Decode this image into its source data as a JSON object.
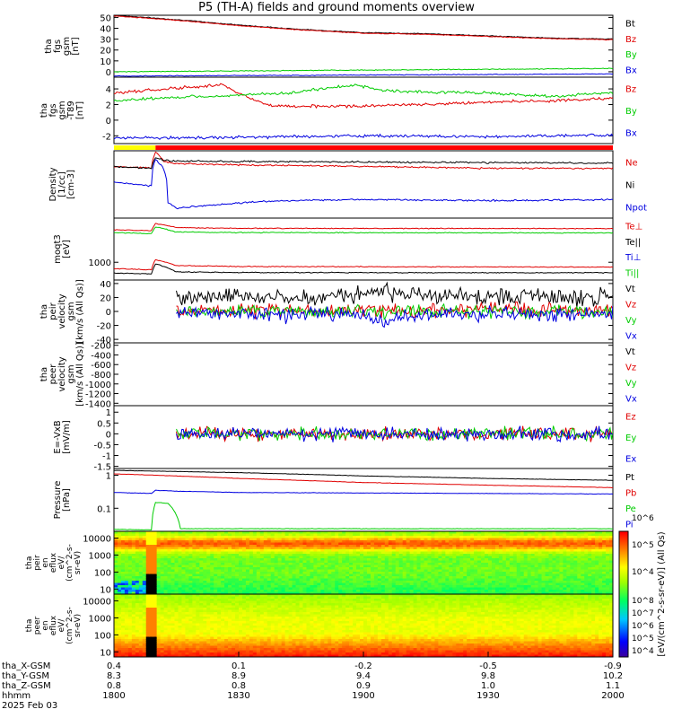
{
  "title": "P5 (TH-A) fields and ground moments overview",
  "colors": {
    "black": "#000000",
    "red": "#e00000",
    "green": "#00cc00",
    "blue": "#0000e0",
    "ok_bar": "#ff0000",
    "flag_bar": "#ffff00"
  },
  "chart_data": [
    {
      "type": "line",
      "id": "fgs_gsm",
      "ylabel_lines": [
        "tha",
        "fgs",
        "gsm",
        "[nT]"
      ],
      "ylim": [
        -5,
        52
      ],
      "yticks": [
        0,
        10,
        20,
        30,
        40,
        50
      ],
      "legend": [
        "Bt",
        "Bz",
        "By",
        "Bx"
      ],
      "series": [
        {
          "name": "Bt",
          "x": [
            1800,
            1815,
            1830,
            1845,
            1900,
            1915,
            1930,
            1945,
            2000
          ],
          "values": [
            52,
            48,
            43,
            39,
            36,
            35,
            33,
            31,
            30
          ]
        },
        {
          "name": "Bz",
          "x": [
            1800,
            1815,
            1830,
            1845,
            1900,
            1915,
            1930,
            1945,
            2000
          ],
          "values": [
            51.5,
            47.5,
            42.5,
            38.5,
            35.5,
            34.5,
            32.5,
            30.5,
            29.5
          ]
        },
        {
          "name": "By",
          "x": [
            1800,
            2000
          ],
          "values": [
            0,
            3
          ]
        },
        {
          "name": "Bx",
          "x": [
            1800,
            2000
          ],
          "values": [
            -4,
            -2
          ]
        }
      ]
    },
    {
      "type": "line",
      "id": "fgs_gsm_detrended",
      "ylabel_lines": [
        "tha",
        "fgs",
        "gsm",
        "-T89",
        "[nT]"
      ],
      "ylim": [
        -3,
        5.5
      ],
      "yticks": [
        -2,
        0,
        2,
        4
      ],
      "legend": [
        "Bz",
        "By",
        "Bx"
      ],
      "series": [
        {
          "name": "Bz",
          "x": [
            1800,
            1808,
            1818,
            1826,
            1832,
            1838,
            1848,
            1900,
            1912,
            1924,
            1936,
            1948,
            2000
          ],
          "values": [
            3.5,
            3.8,
            4.2,
            4.5,
            3.0,
            1.8,
            1.8,
            1.8,
            2.0,
            2.2,
            2.4,
            2.5,
            2.8
          ]
        },
        {
          "name": "By",
          "x": [
            1800,
            1810,
            1820,
            1830,
            1840,
            1850,
            1858,
            1905,
            1915,
            1930,
            1945,
            2000
          ],
          "values": [
            2.5,
            2.8,
            3.0,
            3.2,
            3.4,
            4.0,
            4.5,
            3.8,
            3.6,
            3.5,
            3.0,
            3.5
          ]
        },
        {
          "name": "Bx",
          "x": [
            1800,
            1830,
            1900,
            1930,
            2000
          ],
          "values": [
            -2.3,
            -2.2,
            -2.0,
            -2.1,
            -1.9
          ]
        }
      ]
    },
    {
      "type": "line",
      "id": "density",
      "ylabel_lines": [
        "Density",
        "[1/cc]",
        "[cm-3]"
      ],
      "yscale": "log",
      "ylim": [
        0.003,
        3
      ],
      "yticks": [],
      "legend": [
        "Ne",
        "Ni",
        "Npot"
      ],
      "series": [
        {
          "name": "Ne",
          "x": [
            1800,
            1809,
            1810,
            1812,
            1815,
            1830,
            1900,
            1930,
            2000
          ],
          "values": [
            0.6,
            0.5,
            2.5,
            1.0,
            0.8,
            0.7,
            0.6,
            0.5,
            0.5
          ]
        },
        {
          "name": "Ni",
          "x": [
            1800,
            1809,
            1810,
            1812,
            1815,
            1830,
            1900,
            1930,
            2000
          ],
          "values": [
            0.6,
            0.5,
            1.5,
            1.1,
            1.05,
            1.0,
            0.95,
            0.9,
            0.85
          ]
        },
        {
          "name": "Npot",
          "x": [
            1800,
            1809,
            1810,
            1813,
            1815,
            1825,
            1840,
            1900,
            1930,
            2000
          ],
          "values": [
            0.12,
            0.08,
            1.2,
            0.015,
            0.008,
            0.012,
            0.018,
            0.02,
            0.018,
            0.02
          ]
        }
      ]
    },
    {
      "type": "line",
      "id": "temperature",
      "ylabel_lines": [
        "moqt3",
        "[eV]"
      ],
      "yscale": "log",
      "ylim": [
        300,
        20000
      ],
      "yticks": [
        1000
      ],
      "legend": [
        "Te⊥",
        "Te||",
        "Ti⊥",
        "Ti||"
      ],
      "series": [
        {
          "name": "Te⊥",
          "x": [
            1800,
            1809,
            1810,
            1815,
            1830,
            2000
          ],
          "values": [
            650,
            600,
            1200,
            800,
            750,
            720
          ]
        },
        {
          "name": "Te||",
          "x": [
            1800,
            1809,
            1810,
            1815,
            1830,
            2000
          ],
          "values": [
            480,
            450,
            900,
            520,
            500,
            490
          ]
        },
        {
          "name": "Ti⊥",
          "x": [
            1800,
            1809,
            1810,
            1815,
            1830,
            2000
          ],
          "values": [
            9000,
            8500,
            14000,
            10500,
            10000,
            9800
          ]
        },
        {
          "name": "Ti||",
          "x": [
            1800,
            1809,
            1810,
            1815,
            1830,
            2000
          ],
          "values": [
            7500,
            7000,
            11000,
            7800,
            7500,
            7300
          ]
        }
      ]
    },
    {
      "type": "line",
      "id": "peir_velocity",
      "ylabel_lines": [
        "tha",
        "peir",
        "velocity",
        "gsm",
        "[km/s (All Qs)]"
      ],
      "ylim": [
        -45,
        45
      ],
      "yticks": [
        -40,
        -20,
        0,
        20,
        40
      ],
      "legend": [
        "Vt",
        "Vz",
        "Vy",
        "Vx"
      ],
      "series": [
        {
          "name": "Vt",
          "x": [
            1815,
            1830,
            1845,
            1900,
            1905,
            1915,
            1930,
            2000
          ],
          "values": [
            20,
            22,
            20,
            24,
            28,
            22,
            20,
            20
          ]
        },
        {
          "name": "Vz",
          "x": [
            1815,
            2000
          ],
          "values": [
            2,
            2
          ]
        },
        {
          "name": "Vy",
          "x": [
            1815,
            2000
          ],
          "values": [
            0,
            0
          ]
        },
        {
          "name": "Vx",
          "x": [
            1815,
            1900,
            1905,
            1910,
            2000
          ],
          "values": [
            -2,
            -5,
            -15,
            -5,
            -2
          ]
        }
      ]
    },
    {
      "type": "line",
      "id": "peer_velocity",
      "ylabel_lines": [
        "tha",
        "peer",
        "velocity",
        "gsm",
        "[km/s (All Qs)]"
      ],
      "ylim": [
        -1450,
        -150
      ],
      "yticks": [
        -200,
        -400,
        -600,
        -800,
        -1000,
        -1200,
        -1400
      ],
      "legend": [
        "Vt",
        "Vz",
        "Vy",
        "Vx"
      ],
      "series": []
    },
    {
      "type": "line",
      "id": "e_field",
      "ylabel_lines": [
        "E=-VxB",
        "[mV/m]"
      ],
      "ylim": [
        -1.6,
        1.3
      ],
      "yticks": [
        -1.5,
        -1.0,
        -0.5,
        0.0,
        0.5,
        1.0
      ],
      "legend": [
        "Ez",
        "Ey",
        "Ex"
      ],
      "series": [
        {
          "name": "Ez",
          "x": [
            1815,
            2000
          ],
          "values": [
            0,
            0
          ]
        },
        {
          "name": "Ey",
          "x": [
            1815,
            2000
          ],
          "values": [
            0,
            0
          ]
        },
        {
          "name": "Ex",
          "x": [
            1815,
            2000
          ],
          "values": [
            0,
            0
          ]
        }
      ]
    },
    {
      "type": "line",
      "id": "pressure",
      "ylabel_lines": [
        "Pressure",
        "[nPa]"
      ],
      "yscale": "log",
      "ylim": [
        0.02,
        1.6
      ],
      "yticks": [
        0.1,
        1.0
      ],
      "legend": [
        "Pt",
        "Pb",
        "Pe",
        "Pi"
      ],
      "series": [
        {
          "name": "Pt",
          "x": [
            1800,
            1830,
            1900,
            1930,
            2000
          ],
          "values": [
            1.4,
            1.2,
            0.95,
            0.8,
            0.7
          ]
        },
        {
          "name": "Pb",
          "x": [
            1800,
            1830,
            1900,
            1930,
            2000
          ],
          "values": [
            1.1,
            0.8,
            0.6,
            0.5,
            0.42
          ]
        },
        {
          "name": "Pe",
          "x": [
            1800,
            1809,
            1810,
            1813,
            1816,
            2000
          ],
          "values": [
            0.023,
            0.022,
            0.15,
            0.14,
            0.024,
            0.024
          ]
        },
        {
          "name": "Pi",
          "x": [
            1800,
            1809,
            1810,
            1815,
            1830,
            2000
          ],
          "values": [
            0.3,
            0.28,
            0.35,
            0.33,
            0.3,
            0.27
          ]
        }
      ]
    },
    {
      "type": "heatmap",
      "id": "peir_eflux",
      "ylabel_lines": [
        "tha",
        "peir",
        "en",
        "eflux",
        "eV/",
        "(cm^2-s-",
        "sr-eV)"
      ],
      "yscale": "log",
      "ylim": [
        5,
        25000
      ],
      "yticks": [
        10,
        100,
        1000,
        10000
      ],
      "zlabel": "[eV/(cm^2-s-sr-eV)] (All Qs)",
      "zticks": [
        "10^4",
        "10^5",
        "10^6"
      ]
    },
    {
      "type": "heatmap",
      "id": "peer_eflux",
      "ylabel_lines": [
        "tha",
        "peer",
        "en",
        "eflux",
        "eV/",
        "(cm^2-s-",
        "sr-eV)"
      ],
      "yscale": "log",
      "ylim": [
        5,
        25000
      ],
      "yticks": [
        10,
        100,
        1000,
        10000
      ],
      "zlabel": "[eV/(cm^2-s-sr-eV)] (All Qs)",
      "zticks": [
        "10^4",
        "10^5",
        "10^6",
        "10^7",
        "10^8"
      ]
    }
  ],
  "x_axis": {
    "range": [
      1800,
      2000
    ],
    "rows": [
      {
        "label": "tha_X-GSM",
        "values": [
          "0.4",
          "0.1",
          "-0.2",
          "-0.5",
          "-0.9"
        ]
      },
      {
        "label": "tha_Y-GSM",
        "values": [
          "8.3",
          "8.9",
          "9.4",
          "9.8",
          "10.2"
        ]
      },
      {
        "label": "tha_Z-GSM",
        "values": [
          "0.8",
          "0.8",
          "0.9",
          "1.0",
          "1.1"
        ]
      },
      {
        "label": "hhmm",
        "values": [
          "1800",
          "1830",
          "1900",
          "1930",
          "2000"
        ]
      }
    ],
    "date": "2025 Feb 03"
  }
}
